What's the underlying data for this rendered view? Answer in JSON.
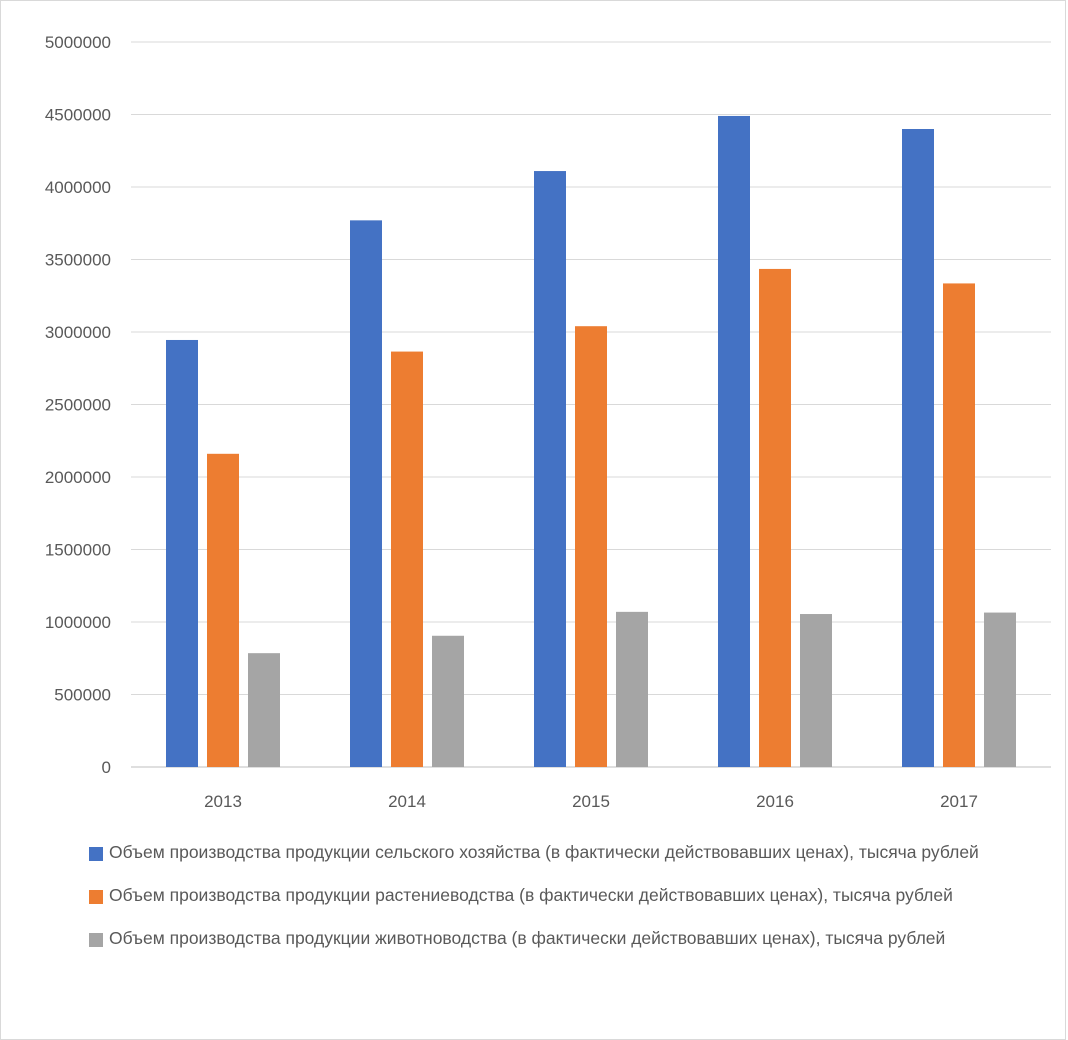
{
  "chart_data": {
    "type": "bar",
    "categories": [
      "2013",
      "2014",
      "2015",
      "2016",
      "2017"
    ],
    "series": [
      {
        "name": "Объем производства продукции сельского хозяйства (в фактически действовавших ценах), тысяча рублей",
        "color": "#4472C4",
        "values": [
          2945000,
          3770000,
          4110000,
          4490000,
          4400000
        ]
      },
      {
        "name": "Объем производства продукции растениеводства (в фактически действовавших ценах), тысяча рублей",
        "color": "#ED7D31",
        "values": [
          2160000,
          2865000,
          3040000,
          3435000,
          3335000
        ]
      },
      {
        "name": "Объем производства продукции животноводства (в фактически действовавших ценах), тысяча рублей",
        "color": "#A5A5A5",
        "values": [
          785000,
          905000,
          1070000,
          1055000,
          1065000
        ]
      }
    ],
    "yticks": [
      "0",
      "500000",
      "1000000",
      "1500000",
      "2000000",
      "2500000",
      "3000000",
      "3500000",
      "4000000",
      "4500000",
      "5000000"
    ],
    "ylim": [
      0,
      5000000
    ],
    "grid": true,
    "legend_position": "bottom"
  }
}
